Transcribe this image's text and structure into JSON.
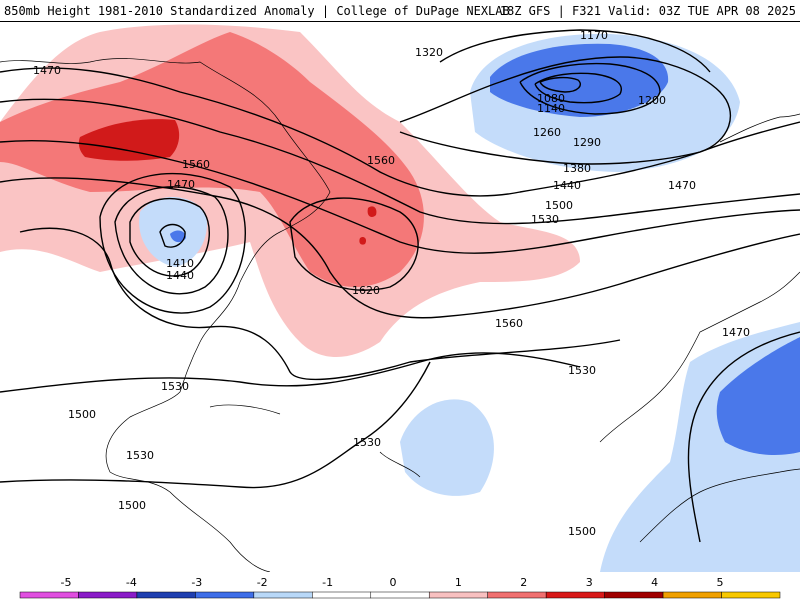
{
  "header": {
    "title_left": "850mb Height 1981-2010 Standardized Anomaly | College of DuPage NEXLAB",
    "title_right": "18Z GFS | F321 Valid: 03Z TUE APR 08 2025"
  },
  "contour_labels": [
    {
      "id": "l1470a",
      "text": "1470"
    },
    {
      "id": "l1320",
      "text": "1320"
    },
    {
      "id": "l1170",
      "text": "1170"
    },
    {
      "id": "l1080",
      "text": "1080"
    },
    {
      "id": "l1140",
      "text": "1140"
    },
    {
      "id": "l1200",
      "text": "1200"
    },
    {
      "id": "l1260",
      "text": "1260"
    },
    {
      "id": "l1290",
      "text": "1290"
    },
    {
      "id": "l1380",
      "text": "1380"
    },
    {
      "id": "l1440a",
      "text": "1440"
    },
    {
      "id": "l1470b",
      "text": "1470"
    },
    {
      "id": "l1500a",
      "text": "1500"
    },
    {
      "id": "l1530a",
      "text": "1530"
    },
    {
      "id": "l1560a",
      "text": "1560"
    },
    {
      "id": "l1560b",
      "text": "1560"
    },
    {
      "id": "l1470c",
      "text": "1470"
    },
    {
      "id": "l1410",
      "text": "1410"
    },
    {
      "id": "l1440b",
      "text": "1440"
    },
    {
      "id": "l1620",
      "text": "1620"
    },
    {
      "id": "l1560c",
      "text": "1560"
    },
    {
      "id": "l1530b",
      "text": "1530"
    },
    {
      "id": "l1530c",
      "text": "1530"
    },
    {
      "id": "l1500b",
      "text": "1500"
    },
    {
      "id": "l1530d",
      "text": "1530"
    },
    {
      "id": "l1530e",
      "text": "1530"
    },
    {
      "id": "l1500c",
      "text": "1500"
    },
    {
      "id": "l1500d",
      "text": "1500"
    },
    {
      "id": "l1470d",
      "text": "1470"
    }
  ],
  "colorbar": {
    "ticks": [
      "-5",
      "-4",
      "-3",
      "-2",
      "-1",
      "0",
      "1",
      "2",
      "3",
      "4",
      "5"
    ],
    "colors": [
      "#e04fe0",
      "#8a1bc8",
      "#1f3fb0",
      "#3e6ee8",
      "#b8d8f8",
      "#ffffff",
      "#ffffff",
      "#f8c0c0",
      "#f07070",
      "#d81818",
      "#a00000",
      "#f0a000",
      "#f8c800"
    ]
  },
  "colors": {
    "anomaly_pos_1": "#fac4c4",
    "anomaly_pos_2": "#f47878",
    "anomaly_pos_3": "#d11a1a",
    "anomaly_neg_1": "#c4dcfa",
    "anomaly_neg_2": "#4a78ea",
    "coastline": "#000000"
  }
}
